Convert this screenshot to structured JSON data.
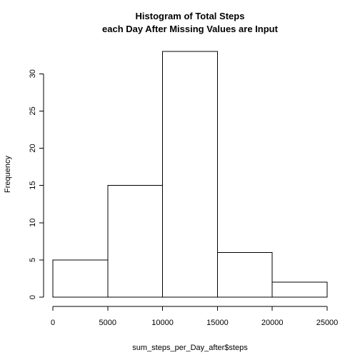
{
  "chart_data": {
    "type": "histogram",
    "title_lines": [
      "Histogram of Total Steps",
      "each Day After Missing Values are Input"
    ],
    "xlabel": "sum_steps_per_Day_after$steps",
    "ylabel": "Frequency",
    "bins": [
      {
        "from": 0,
        "to": 5000,
        "count": 5
      },
      {
        "from": 5000,
        "to": 10000,
        "count": 15
      },
      {
        "from": 10000,
        "to": 15000,
        "count": 33
      },
      {
        "from": 15000,
        "to": 20000,
        "count": 6
      },
      {
        "from": 20000,
        "to": 25000,
        "count": 2
      }
    ],
    "xlim": [
      0,
      25000
    ],
    "ylim": [
      0,
      33
    ],
    "x_ticks": [
      0,
      5000,
      10000,
      15000,
      20000,
      25000
    ],
    "y_ticks": [
      0,
      5,
      10,
      15,
      20,
      25,
      30
    ],
    "bar_fill": "#ffffff",
    "bar_stroke": "#000000"
  }
}
